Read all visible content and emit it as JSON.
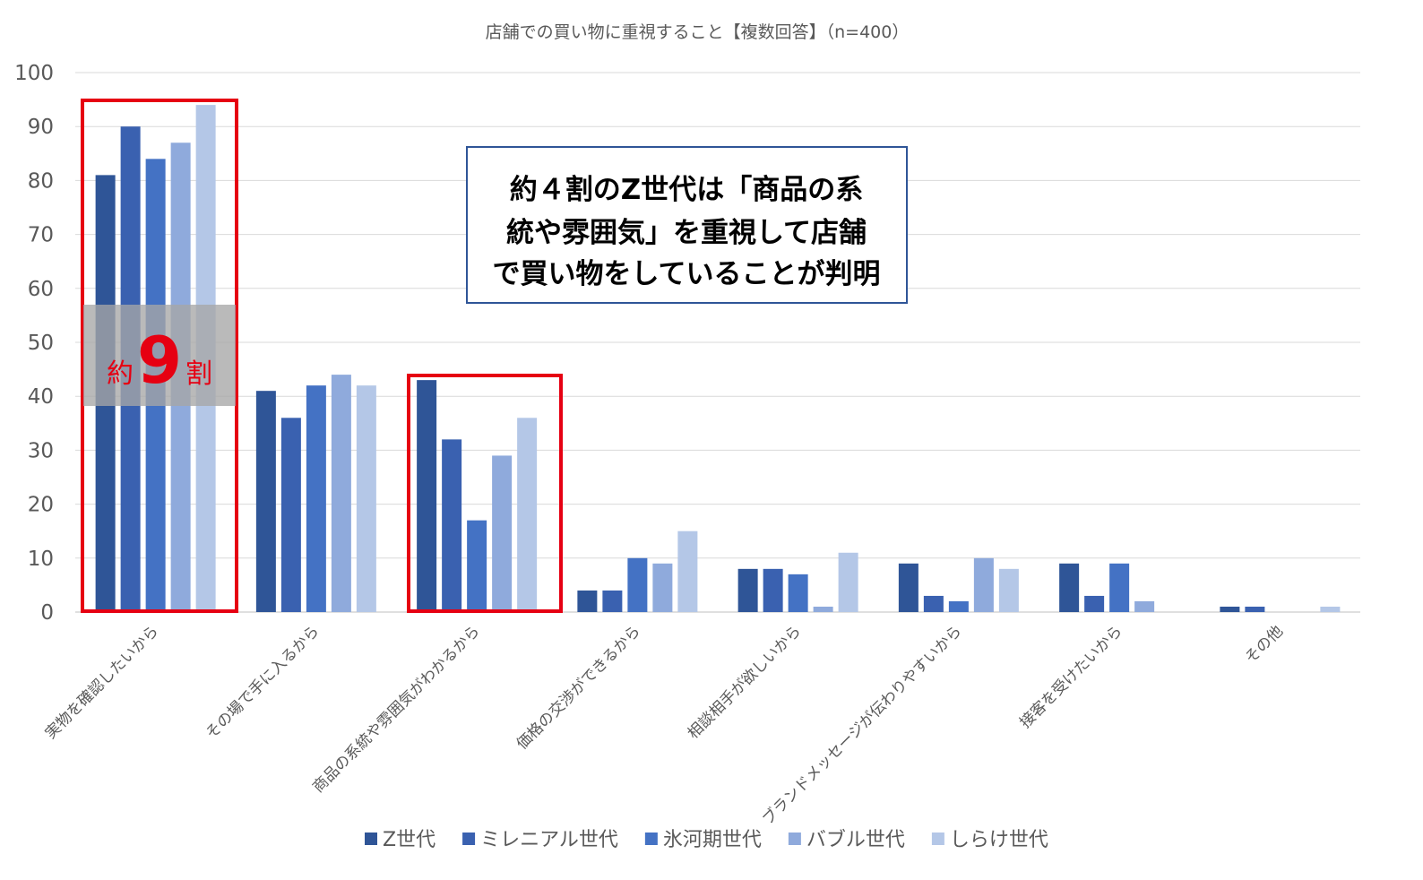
{
  "chart_data": {
    "type": "bar",
    "title": "店舗での買い物に重視すること【複数回答】（n=400）",
    "ylim": [
      0,
      100
    ],
    "yticks": [
      0,
      10,
      20,
      30,
      40,
      50,
      60,
      70,
      80,
      90,
      100
    ],
    "grid": true,
    "legend_position": "bottom",
    "categories": [
      "実物を確認したいから",
      "その場で手に入るから",
      "商品の系統や雰囲気がわかるから",
      "価格の交渉ができるから",
      "相談相手が欲しいから",
      "ブランドメッセージが伝わりやすいから",
      "接客を受けたいから",
      "その他"
    ],
    "series": [
      {
        "name": "Z世代",
        "color": "#2f5597",
        "values": [
          81,
          41,
          43,
          4,
          8,
          9,
          9,
          1
        ]
      },
      {
        "name": "ミレニアル世代",
        "color": "#3a61b0",
        "values": [
          90,
          36,
          32,
          4,
          8,
          3,
          3,
          1
        ]
      },
      {
        "name": "氷河期世代",
        "color": "#4472c4",
        "values": [
          84,
          42,
          17,
          10,
          7,
          2,
          9,
          0
        ]
      },
      {
        "name": "バブル世代",
        "color": "#8faadc",
        "values": [
          87,
          44,
          29,
          9,
          1,
          10,
          2,
          0
        ]
      },
      {
        "name": "しらけ世代",
        "color": "#b4c7e7",
        "values": [
          94,
          42,
          36,
          15,
          11,
          8,
          0,
          1
        ]
      }
    ],
    "highlights": [
      "実物を確認したいから",
      "商品の系統や雰囲気がわかるから"
    ]
  },
  "annotations": {
    "callout_lines": [
      "約４割のZ世代は「商品の系",
      "統や雰囲気」を重視して店舗",
      "で買い物をしていることが判明"
    ],
    "nine_prefix": "約",
    "nine_number": "9",
    "nine_suffix": "割"
  }
}
